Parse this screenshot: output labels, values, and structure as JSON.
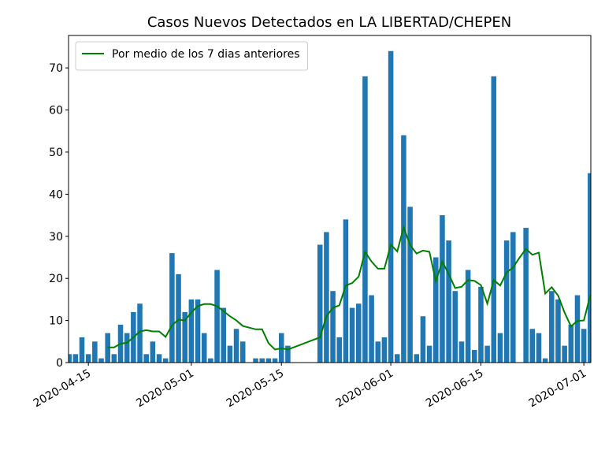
{
  "chart_data": {
    "type": "bar",
    "title": "Casos Nuevos Detectados en LA LIBERTAD/CHEPEN",
    "x": [
      "2020-04-12",
      "2020-04-13",
      "2020-04-14",
      "2020-04-15",
      "2020-04-16",
      "2020-04-17",
      "2020-04-18",
      "2020-04-19",
      "2020-04-20",
      "2020-04-21",
      "2020-04-22",
      "2020-04-23",
      "2020-04-24",
      "2020-04-25",
      "2020-04-26",
      "2020-04-27",
      "2020-04-28",
      "2020-04-29",
      "2020-04-30",
      "2020-05-01",
      "2020-05-02",
      "2020-05-03",
      "2020-05-04",
      "2020-05-05",
      "2020-05-06",
      "2020-05-07",
      "2020-05-08",
      "2020-05-09",
      "2020-05-10",
      "2020-05-11",
      "2020-05-12",
      "2020-05-13",
      "2020-05-14",
      "2020-05-15",
      "2020-05-16",
      "2020-05-21",
      "2020-05-22",
      "2020-05-23",
      "2020-05-24",
      "2020-05-25",
      "2020-05-26",
      "2020-05-27",
      "2020-05-28",
      "2020-05-29",
      "2020-05-30",
      "2020-05-31",
      "2020-06-01",
      "2020-06-02",
      "2020-06-03",
      "2020-06-04",
      "2020-06-05",
      "2020-06-06",
      "2020-06-07",
      "2020-06-08",
      "2020-06-09",
      "2020-06-10",
      "2020-06-11",
      "2020-06-12",
      "2020-06-13",
      "2020-06-14",
      "2020-06-15",
      "2020-06-16",
      "2020-06-17",
      "2020-06-18",
      "2020-06-19",
      "2020-06-20",
      "2020-06-21",
      "2020-06-22",
      "2020-06-23",
      "2020-06-24",
      "2020-06-25",
      "2020-06-26",
      "2020-06-27",
      "2020-06-28",
      "2020-06-29",
      "2020-06-30",
      "2020-07-01",
      "2020-07-02"
    ],
    "series": [
      {
        "type": "bar",
        "color": "#1f77b4",
        "values": [
          2,
          2,
          6,
          2,
          5,
          1,
          7,
          2,
          9,
          7,
          12,
          14,
          2,
          5,
          2,
          1,
          26,
          21,
          12,
          15,
          15,
          7,
          1,
          22,
          13,
          4,
          8,
          5,
          0,
          1,
          1,
          1,
          1,
          7,
          4,
          28,
          31,
          17,
          6,
          34,
          13,
          14,
          68,
          16,
          5,
          6,
          74,
          2,
          54,
          37,
          2,
          11,
          4,
          25,
          35,
          29,
          17,
          5,
          22,
          3,
          18,
          4,
          68,
          7,
          29,
          31,
          0,
          32,
          8,
          7,
          1,
          17,
          15,
          4,
          9,
          16,
          8,
          45
        ]
      },
      {
        "type": "line",
        "name": "Por medio de los 7 dias anteriores",
        "color": "#008000",
        "values": [
          null,
          null,
          null,
          null,
          null,
          null,
          3.6,
          3.6,
          4.5,
          4.7,
          6,
          7.4,
          7.7,
          7.4,
          7.4,
          6.1,
          8.9,
          10.2,
          10,
          11.9,
          13.4,
          13.9,
          13.9,
          13.4,
          12.2,
          11,
          10,
          8.7,
          8.3,
          7.9,
          7.9,
          4.6,
          3.1,
          3.4,
          3.1,
          6,
          11,
          13,
          13.6,
          18.3,
          18.9,
          20.4,
          26.3,
          24,
          22.3,
          22.3,
          28,
          26.4,
          32.1,
          27.9,
          25.9,
          26.6,
          26.3,
          19.3,
          24,
          21,
          17.7,
          18,
          19.6,
          19.4,
          18.4,
          14,
          19.6,
          18.3,
          21.4,
          22.6,
          24.9,
          27,
          25.6,
          26.1,
          16.4,
          17.9,
          15.9,
          11.9,
          8.6,
          9.9,
          10,
          16
        ]
      }
    ],
    "xlim": [
      "2020-04-11T22:00",
      "2020-07-02T02:00"
    ],
    "xticks": [
      "2020-04-15",
      "2020-05-01",
      "2020-05-15",
      "2020-06-01",
      "2020-06-15",
      "2020-07-01"
    ],
    "ylim": [
      0,
      77.7
    ],
    "yticks": [
      0,
      10,
      20,
      30,
      40,
      50,
      60,
      70
    ],
    "legend": "upper left"
  }
}
